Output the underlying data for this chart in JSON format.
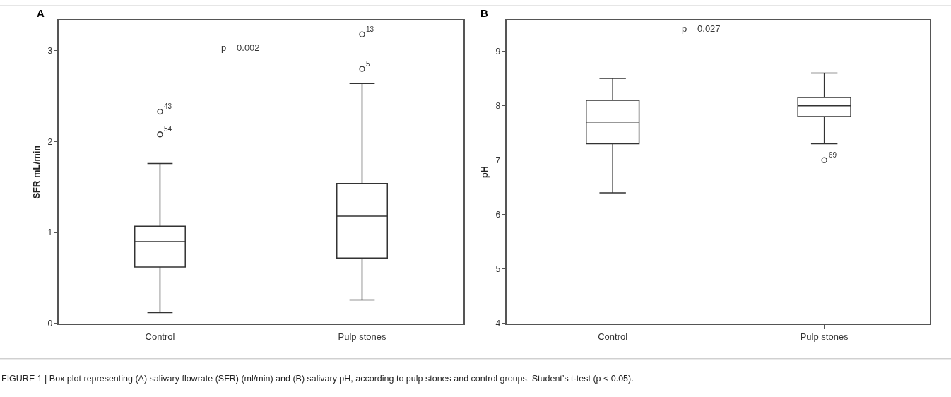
{
  "chart_data": [
    {
      "type": "box",
      "ylabel": "SFR mL/min",
      "categories": [
        "Control",
        "Pulp stones"
      ],
      "ylim": [
        0,
        3.33
      ],
      "yticks": [
        0,
        1,
        2,
        3
      ],
      "series": [
        {
          "color": "#333333",
          "boxes": [
            {
              "low": 0.12,
              "q1": 0.62,
              "median": 0.9,
              "q3": 1.07,
              "high": 1.76,
              "outliers": [
                2.33,
                2.08
              ]
            },
            {
              "low": 0.26,
              "q1": 0.72,
              "median": 1.18,
              "q3": 1.54,
              "high": 2.64,
              "outliers": [
                3.18,
                2.8
              ]
            }
          ]
        }
      ],
      "annotations": [
        "A",
        "p = 0.002",
        "FIGURE 1 | Box plot representing (A) salivary flowrate (SFR) (ml/min) and (B) salivary pH, according to pulp stones and control groups. Student’s t-test (p < 0.05).",
        "43",
        "54",
        "13",
        "5"
      ]
    },
    {
      "type": "box",
      "ylabel": "pH",
      "categories": [
        "Control",
        "Pulp stones"
      ],
      "ylim": [
        4,
        9.56
      ],
      "yticks": [
        4,
        5,
        6,
        7,
        8,
        9
      ],
      "series": [
        {
          "color": "#333333",
          "boxes": [
            {
              "low": 6.4,
              "q1": 7.3,
              "median": 7.7,
              "q3": 8.1,
              "high": 8.5
            },
            {
              "low": 7.3,
              "q1": 7.8,
              "median": 8.0,
              "q3": 8.15,
              "high": 8.6,
              "outliers": [
                7.0
              ]
            }
          ]
        }
      ],
      "annotations": [
        "B",
        "p = 0.027",
        "69"
      ]
    }
  ]
}
